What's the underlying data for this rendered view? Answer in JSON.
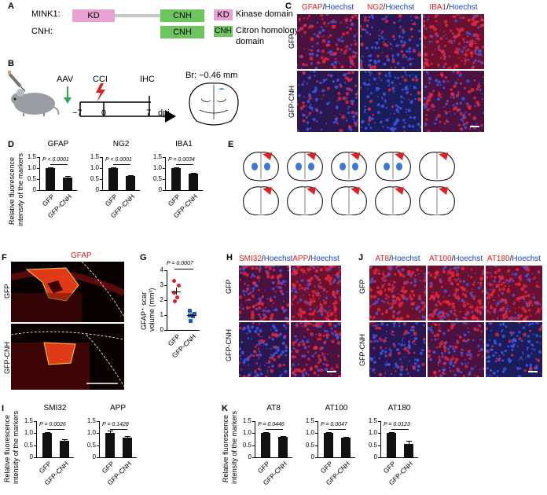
{
  "panels": {
    "A": {
      "letter": "A",
      "constructs": [
        {
          "name": "MINK1:",
          "domains": [
            "KD",
            "CNH"
          ]
        },
        {
          "name": "CNH:",
          "domains": [
            "CNH"
          ]
        }
      ],
      "legend": [
        {
          "tag": "KD",
          "text": "Kinase domain",
          "color": "#e8a2d2"
        },
        {
          "tag": "CNH",
          "text": "Citron homology",
          "text2": "domain",
          "color": "#6cc65b"
        }
      ]
    },
    "B": {
      "letter": "B",
      "timeline": {
        "aav": "AAV",
        "cci": "CCI",
        "ihc": "IHC",
        "t1": "−7",
        "t2": "0",
        "t3": "7",
        "unit": "dpi"
      },
      "bregma": "Br: −0.46 mm"
    },
    "C": {
      "letter": "C",
      "headers": [
        {
          "marker": "GFAP",
          "sep": "/",
          "stain": "Hoechst"
        },
        {
          "marker": "NG2",
          "sep": "/",
          "stain": "Hoechst"
        },
        {
          "marker": "IBA1",
          "sep": "/",
          "stain": "Hoechst"
        }
      ],
      "rows": [
        "GFP",
        "GFP-CNH"
      ]
    },
    "D": {
      "letter": "D",
      "ylabel": "Relative fluorescence",
      "ylabel2": "intensity of the markers"
    },
    "E": {
      "letter": "E"
    },
    "F": {
      "letter": "F",
      "title": "GFAP",
      "rows": [
        "GFP",
        "GFP-CNH"
      ]
    },
    "G": {
      "letter": "G",
      "ylabel": "GFAP⁺ scar",
      "ylabel2": "volume (mm³)",
      "pval": "P = 0.0007"
    },
    "H": {
      "letter": "H",
      "headers": [
        {
          "marker": "SMI32",
          "sep": "/",
          "stain": "Hoechst"
        },
        {
          "marker": "APP",
          "sep": "/",
          "stain": "Hoechst"
        }
      ],
      "rows": [
        "GFP",
        "GFP-CNH"
      ]
    },
    "I": {
      "letter": "I",
      "ylabel": "Relative fluorescence",
      "ylabel2": "intensity of the markers"
    },
    "J": {
      "letter": "J",
      "headers": [
        {
          "marker": "AT8",
          "sep": "/",
          "stain": "Hoechst"
        },
        {
          "marker": "AT100",
          "sep": "/",
          "stain": "Hoechst"
        },
        {
          "marker": "AT180",
          "sep": "/",
          "stain": "Hoechst"
        }
      ],
      "rows": [
        "GFP",
        "GFP-CNH"
      ]
    },
    "K": {
      "letter": "K",
      "ylabel": "Relative fluorescence",
      "ylabel2": "intensity of the markers"
    }
  },
  "colors": {
    "marker": "#e02020",
    "hoechst": "#1a3fd0",
    "bar": "#111111"
  },
  "chart_data": [
    {
      "id": "D-GFAP",
      "type": "bar",
      "title": "GFAP",
      "categories": [
        "GFP",
        "GFP-CNH"
      ],
      "values": [
        1.0,
        0.58
      ],
      "errors": [
        0.05,
        0.05
      ],
      "pval": "P < 0.0001",
      "ylim": [
        0,
        1.5
      ],
      "yticks": [
        "0",
        "0.5",
        "1.0",
        "1.5"
      ]
    },
    {
      "id": "D-NG2",
      "type": "bar",
      "title": "NG2",
      "categories": [
        "GFP",
        "GFP-CNH"
      ],
      "values": [
        1.0,
        0.63
      ],
      "errors": [
        0.04,
        0.04
      ],
      "pval": "P < 0.0001",
      "ylim": [
        0,
        1.5
      ],
      "yticks": [
        "0",
        "0.5",
        "1.0",
        "1.5"
      ]
    },
    {
      "id": "D-IBA1",
      "type": "bar",
      "title": "IBA1",
      "categories": [
        "GFP",
        "GFP-CNH"
      ],
      "values": [
        1.0,
        0.76
      ],
      "errors": [
        0.05,
        0.04
      ],
      "pval": "P = 0.0034",
      "ylim": [
        0,
        1.5
      ],
      "yticks": [
        "0",
        "0.5",
        "1.0",
        "1.5"
      ]
    },
    {
      "id": "G",
      "type": "scatter",
      "categories": [
        "GFP",
        "GFP-CNH"
      ],
      "points": [
        [
          3.3,
          3.0,
          2.5,
          2.2,
          1.9
        ],
        [
          1.3,
          1.1,
          1.0,
          0.9,
          0.6
        ]
      ],
      "means": [
        2.6,
        1.0
      ],
      "sems": [
        0.25,
        0.12
      ],
      "ylim": [
        0,
        4
      ],
      "yticks": [
        "0",
        "1",
        "2",
        "3",
        "4"
      ],
      "colors": [
        "#e02020",
        "#1a5fc0"
      ]
    },
    {
      "id": "I-SMI32",
      "type": "bar",
      "title": "SMI32",
      "categories": [
        "GFP",
        "GFP-CNH"
      ],
      "values": [
        1.0,
        0.7
      ],
      "errors": [
        0.03,
        0.05
      ],
      "pval": "P = 0.0026",
      "ylim": [
        0,
        1.5
      ],
      "yticks": [
        "0",
        "0.5",
        "1.0",
        "1.5"
      ]
    },
    {
      "id": "I-APP",
      "type": "bar",
      "title": "APP",
      "categories": [
        "GFP",
        "GFP-CNH"
      ],
      "values": [
        1.0,
        0.83
      ],
      "errors": [
        0.1,
        0.05
      ],
      "pval": "P = 0.1428",
      "ylim": [
        0,
        1.5
      ],
      "yticks": [
        "0",
        "0.5",
        "1.0",
        "1.5"
      ]
    },
    {
      "id": "K-AT8",
      "type": "bar",
      "title": "AT8",
      "categories": [
        "GFP",
        "GFP-CNH"
      ],
      "values": [
        1.0,
        0.85
      ],
      "errors": [
        0.03,
        0.04
      ],
      "pval": "P = 0.0446",
      "ylim": [
        0,
        1.5
      ],
      "yticks": [
        "0",
        "0.5",
        "1.0",
        "1.5"
      ]
    },
    {
      "id": "K-AT100",
      "type": "bar",
      "title": "AT100",
      "categories": [
        "GFP",
        "GFP-CNH"
      ],
      "values": [
        1.0,
        0.8
      ],
      "errors": [
        0.03,
        0.04
      ],
      "pval": "P = 0.0047",
      "ylim": [
        0,
        1.5
      ],
      "yticks": [
        "0",
        "0.5",
        "1.0",
        "1.5"
      ]
    },
    {
      "id": "K-AT180",
      "type": "bar",
      "title": "AT180",
      "categories": [
        "GFP",
        "GFP-CNH"
      ],
      "values": [
        1.0,
        0.57
      ],
      "errors": [
        0.04,
        0.12
      ],
      "pval": "P = 0.0123",
      "ylim": [
        0,
        1.5
      ],
      "yticks": [
        "0",
        "0.5",
        "1.0",
        "1.5"
      ]
    }
  ]
}
